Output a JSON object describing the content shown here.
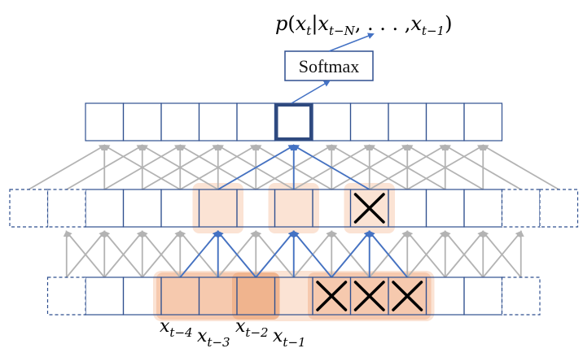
{
  "output_label": {
    "p": "p",
    "open": "(",
    "x": "x",
    "t": "t",
    "bar": "|",
    "x2": "x",
    "sub_tN": "t−N",
    "comma_dots": ", . . . ,",
    "x3": "x",
    "sub_t1": "t−1",
    "close": ")"
  },
  "softmax": {
    "label": "Softmax"
  },
  "input_labels": [
    {
      "base": "x",
      "sub": "t−4"
    },
    {
      "base": "x",
      "sub": "t−3"
    },
    {
      "base": "x",
      "sub": "t−2"
    },
    {
      "base": "x",
      "sub": "t−1"
    }
  ],
  "layers": {
    "top": {
      "cells": 11,
      "highlight_index": 5
    },
    "middle": {
      "cells": 11,
      "padding_left": 2,
      "padding_right": 2,
      "shaded_indices": [
        3,
        5,
        7
      ],
      "masked_indices": [
        7
      ]
    },
    "bottom": {
      "cells": 11,
      "padding_left": 1,
      "padding_right": 1,
      "shaded_indices": [
        2,
        3,
        4,
        5,
        6,
        7,
        8
      ],
      "dark_indices": [
        4
      ],
      "masked_indices": [
        6,
        7,
        8
      ]
    }
  },
  "colors": {
    "box_stroke": "#2f4f8f",
    "active_arrow": "#4472c4",
    "inactive_arrow": "#b3b3b3",
    "shade_light": "#fbe3d4",
    "shade_mid": "#f6c9ae",
    "shade_dark": "#f0b48e"
  }
}
